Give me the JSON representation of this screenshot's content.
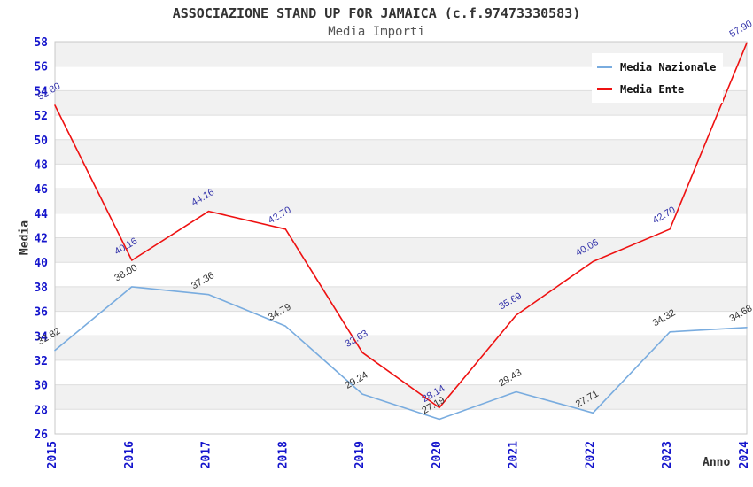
{
  "chart_data": {
    "type": "line",
    "title": "ASSOCIAZIONE STAND UP FOR JAMAICA (c.f.97473330583)",
    "subtitle": "Media Importi",
    "xlabel": "Anno",
    "ylabel": "Media",
    "categories": [
      "2015",
      "2016",
      "2017",
      "2018",
      "2019",
      "2020",
      "2021",
      "2022",
      "2023",
      "2024"
    ],
    "series": [
      {
        "name": "Media Nazionale",
        "color": "#79ACDF",
        "label_color": "#333333",
        "values": [
          32.82,
          38.0,
          37.36,
          34.79,
          29.24,
          27.19,
          29.43,
          27.71,
          34.32,
          34.68
        ]
      },
      {
        "name": "Media Ente",
        "color": "#EE1111",
        "label_color": "#3333AA",
        "values": [
          52.8,
          40.16,
          44.16,
          42.7,
          32.63,
          28.14,
          35.69,
          40.06,
          42.7,
          57.9
        ]
      }
    ],
    "ylim": [
      26,
      58
    ],
    "ytick_step": 2,
    "yticks": [
      26,
      28,
      30,
      32,
      34,
      36,
      38,
      40,
      42,
      44,
      46,
      48,
      50,
      52,
      54,
      56,
      58
    ],
    "grid": "horizontal-bands",
    "legend_position": "top-right",
    "band_color": "#F1F1F1",
    "gridline_color": "#DEDEDE",
    "plot_border_color": "#C8C8C8",
    "tick_label_color": "#1414CC"
  }
}
